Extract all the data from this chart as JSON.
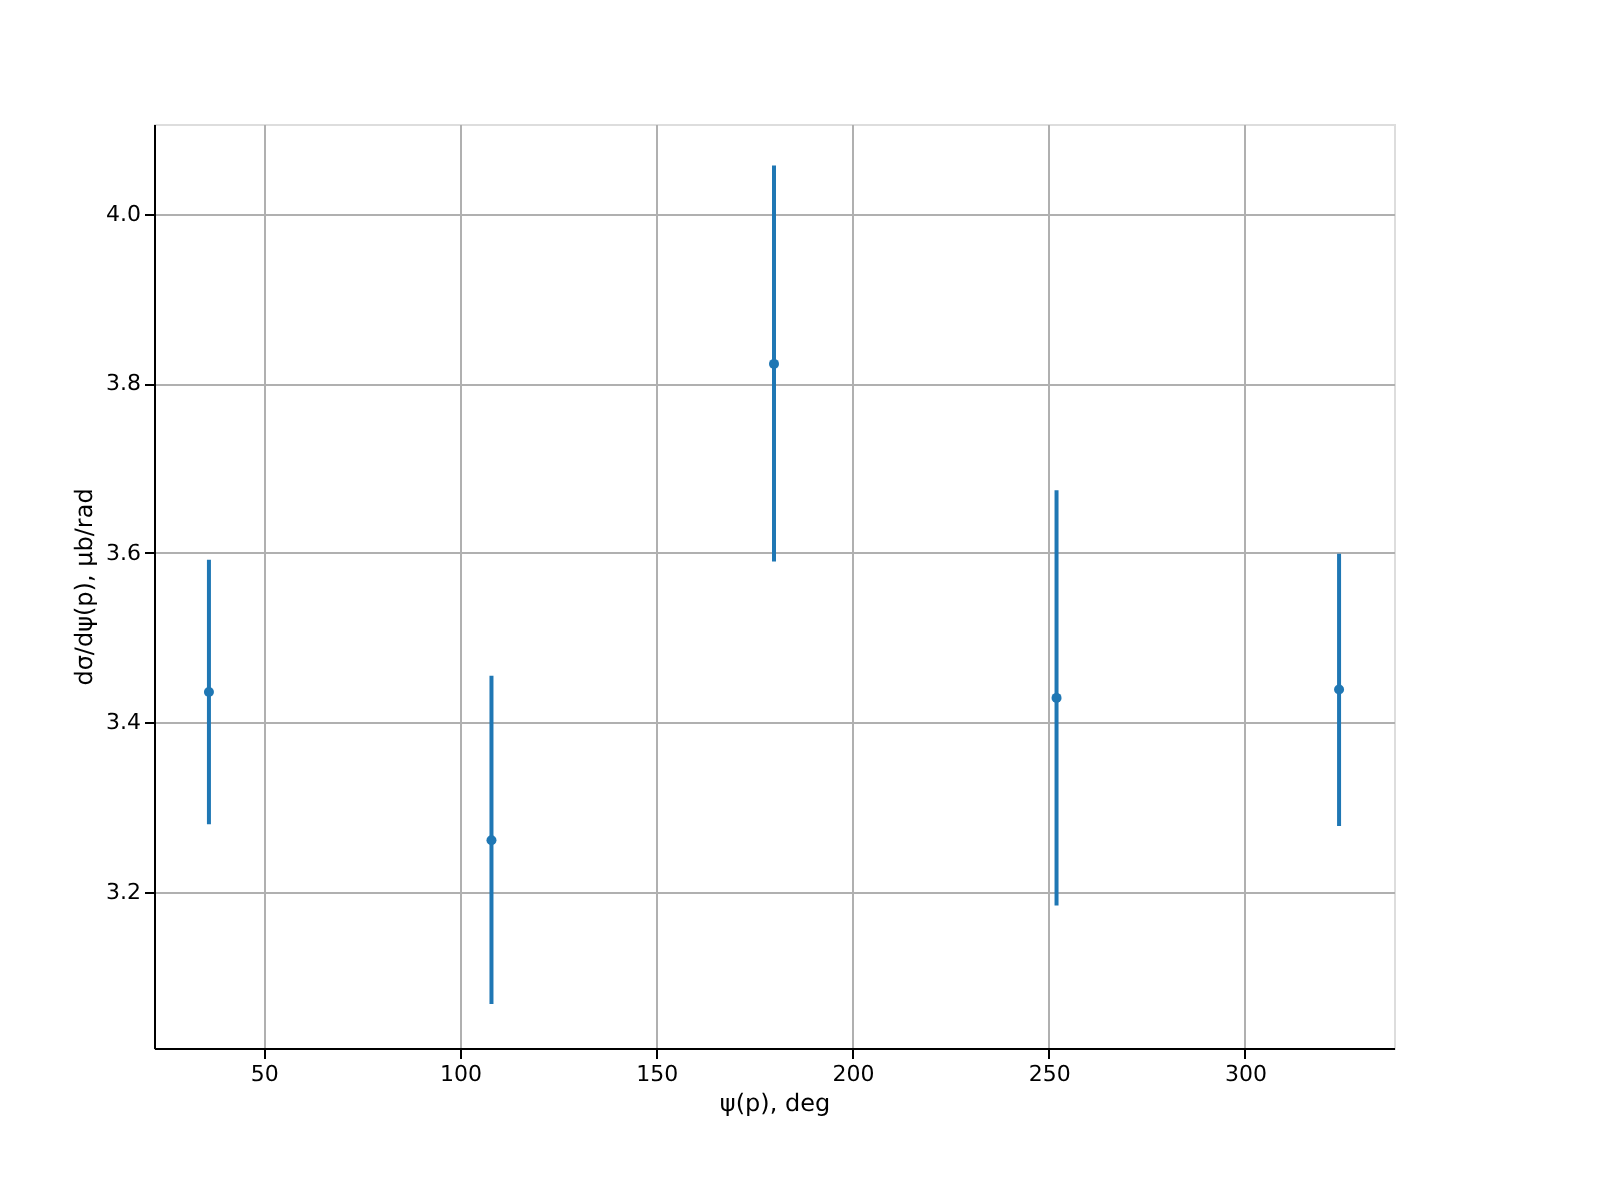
{
  "chart_data": {
    "type": "scatter",
    "x": [
      36,
      108,
      180,
      252,
      324
    ],
    "series": [
      {
        "color": "#1f77b4",
        "values": [
          3.436,
          3.261,
          3.823,
          3.429,
          3.439
        ],
        "errors": [
          [
            3.28,
            3.592
          ],
          [
            3.068,
            3.455
          ],
          [
            3.59,
            4.057
          ],
          [
            3.184,
            3.674
          ],
          [
            3.278,
            3.599
          ]
        ]
      }
    ],
    "xlabel": "ψ(p), deg",
    "ylabel": "dσ/dψ(p), μb/rad",
    "xlim": [
      22,
      338
    ],
    "ylim": [
      3.016,
      4.106
    ],
    "xticks": [
      50,
      100,
      150,
      200,
      250,
      300
    ],
    "yticks": [
      3.2,
      3.4,
      3.6,
      3.8,
      {
        "value": 4,
        "label": "4.0"
      }
    ],
    "grid": true,
    "marker": "circle"
  }
}
